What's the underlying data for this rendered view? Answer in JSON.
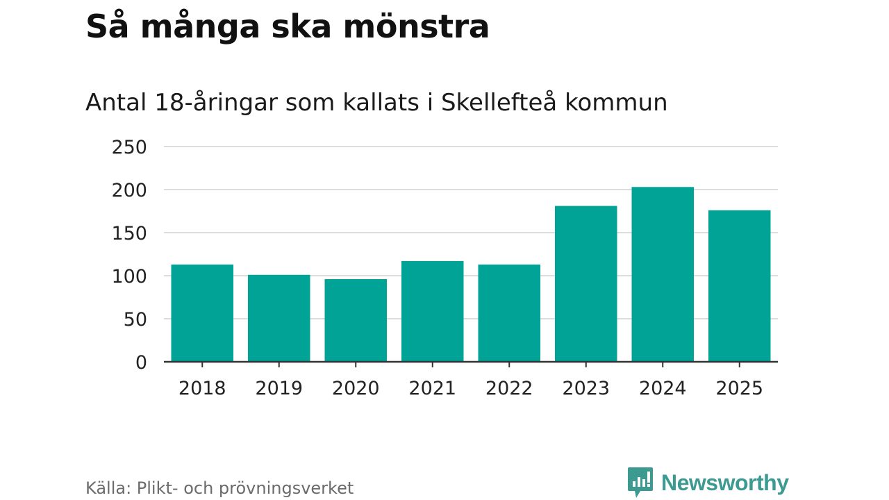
{
  "chart_data": {
    "type": "bar",
    "title": "Så många ska mönstra",
    "subtitle": "Antal 18-åringar som kallats i Skellefteå kommun",
    "categories": [
      "2018",
      "2019",
      "2020",
      "2021",
      "2022",
      "2023",
      "2024",
      "2025"
    ],
    "values": [
      113,
      101,
      96,
      117,
      113,
      181,
      203,
      176
    ],
    "ylim": [
      0,
      250
    ],
    "yticks": [
      0,
      50,
      100,
      150,
      200,
      250
    ],
    "grid": true,
    "bar_color": "#00a396"
  },
  "footer": {
    "source": "Källa: Plikt- och prövningsverket",
    "brand": "Newsworthy",
    "brand_color": "#3c9a91"
  }
}
